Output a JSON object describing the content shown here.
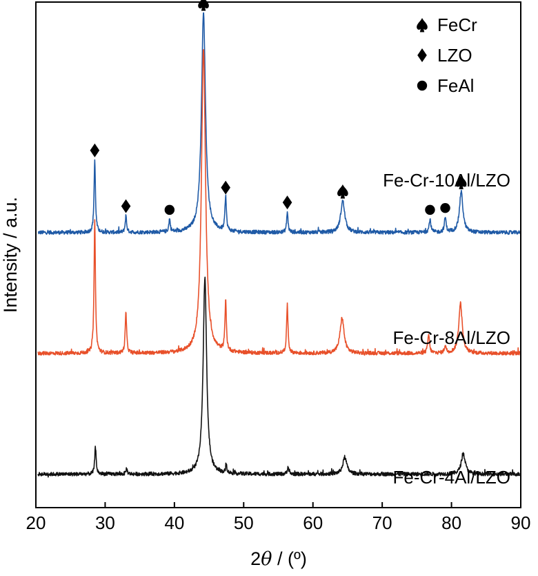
{
  "chart_data": {
    "type": "line",
    "title": "",
    "xlabel_prefix": "2",
    "xlabel_symbol": "θ",
    "xlabel_suffix": " / (º)",
    "ylabel": "Intensity / a.u.",
    "xlim": [
      20,
      90
    ],
    "x_ticks": [
      20,
      30,
      40,
      50,
      60,
      70,
      80,
      90
    ],
    "y_ticks_shown": false,
    "grid": false,
    "legend_position": "top-right",
    "legend": [
      {
        "marker": "spade",
        "label": "FeCr"
      },
      {
        "marker": "diamond",
        "label": "LZO"
      },
      {
        "marker": "circle",
        "label": "FeAl"
      }
    ],
    "series": [
      {
        "name": "Fe-Cr-10Al/LZO",
        "color": "#1f5aa6",
        "baseline": 6.8,
        "noise": 0.05,
        "peaks": [
          {
            "x": 28.5,
            "height": 1.95,
            "width": 0.12
          },
          {
            "x": 33.0,
            "height": 0.45,
            "width": 0.12
          },
          {
            "x": 39.3,
            "height": 0.35,
            "width": 0.12
          },
          {
            "x": 44.2,
            "height": 5.9,
            "width": 0.35
          },
          {
            "x": 47.4,
            "height": 0.95,
            "width": 0.12
          },
          {
            "x": 56.3,
            "height": 0.55,
            "width": 0.12
          },
          {
            "x": 64.3,
            "height": 0.85,
            "width": 0.35
          },
          {
            "x": 76.9,
            "height": 0.35,
            "width": 0.15
          },
          {
            "x": 79.1,
            "height": 0.4,
            "width": 0.15
          },
          {
            "x": 81.4,
            "height": 1.1,
            "width": 0.3
          }
        ],
        "markers": [
          {
            "type": "diamond",
            "x": 28.5
          },
          {
            "type": "diamond",
            "x": 33.0
          },
          {
            "type": "circle",
            "x": 39.3
          },
          {
            "type": "spade",
            "x": 44.2
          },
          {
            "type": "diamond",
            "x": 47.4
          },
          {
            "type": "diamond",
            "x": 56.3
          },
          {
            "type": "spade",
            "x": 64.3
          },
          {
            "type": "circle",
            "x": 76.9
          },
          {
            "type": "circle",
            "x": 79.1
          },
          {
            "type": "spade",
            "x": 81.4
          }
        ]
      },
      {
        "name": "Fe-Cr-8Al/LZO",
        "color": "#e8502a",
        "baseline": 3.55,
        "noise": 0.05,
        "peaks": [
          {
            "x": 28.5,
            "height": 3.55,
            "width": 0.12
          },
          {
            "x": 33.0,
            "height": 1.1,
            "width": 0.12
          },
          {
            "x": 44.2,
            "height": 8.2,
            "width": 0.35
          },
          {
            "x": 47.4,
            "height": 1.35,
            "width": 0.12
          },
          {
            "x": 56.3,
            "height": 1.3,
            "width": 0.12
          },
          {
            "x": 64.2,
            "height": 0.95,
            "width": 0.35
          },
          {
            "x": 76.7,
            "height": 0.5,
            "width": 0.15
          },
          {
            "x": 79.1,
            "height": 0.2,
            "width": 0.15
          },
          {
            "x": 81.3,
            "height": 1.35,
            "width": 0.3
          }
        ],
        "markers": []
      },
      {
        "name": "Fe-Cr-4Al/LZO",
        "color": "#111111",
        "baseline": 0.3,
        "noise": 0.05,
        "peaks": [
          {
            "x": 28.6,
            "height": 0.75,
            "width": 0.12
          },
          {
            "x": 33.1,
            "height": 0.15,
            "width": 0.12
          },
          {
            "x": 44.4,
            "height": 5.3,
            "width": 0.3
          },
          {
            "x": 47.5,
            "height": 0.2,
            "width": 0.12
          },
          {
            "x": 56.4,
            "height": 0.2,
            "width": 0.12
          },
          {
            "x": 64.6,
            "height": 0.45,
            "width": 0.35
          },
          {
            "x": 81.7,
            "height": 0.55,
            "width": 0.35
          }
        ],
        "markers": []
      }
    ],
    "ylim": [
      -0.6,
      13.0
    ]
  }
}
